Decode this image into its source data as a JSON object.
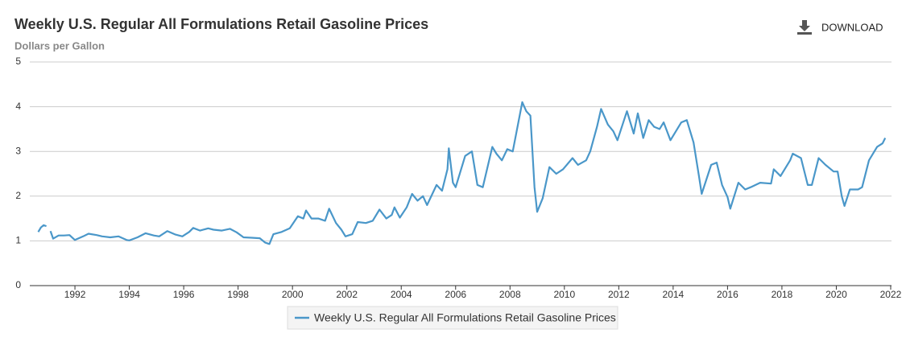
{
  "chart_data": {
    "type": "line",
    "title": "Weekly U.S. Regular All Formulations Retail Gasoline Prices",
    "subtitle": "Dollars per Gallon",
    "button": "DOWNLOAD",
    "xlim": [
      1990.34,
      2022.03
    ],
    "xticks": [
      1992,
      1994,
      1996,
      1998,
      2000,
      2002,
      2004,
      2006,
      2008,
      2010,
      2012,
      2014,
      2016,
      2018,
      2020,
      2022
    ],
    "ylim": [
      0,
      5
    ],
    "yticks": [
      0,
      1,
      2,
      3,
      4,
      5
    ],
    "grid": true,
    "legend": "bottom",
    "x": [
      1990.65,
      1990.75,
      1990.85,
      1990.95,
      1991.0,
      1991.1,
      1991.2,
      1991.4,
      1991.6,
      1991.8,
      1992.0,
      1992.3,
      1992.5,
      1992.8,
      1993.0,
      1993.3,
      1993.6,
      1993.9,
      1994.0,
      1994.3,
      1994.6,
      1994.9,
      1995.1,
      1995.4,
      1995.7,
      1995.95,
      1996.2,
      1996.35,
      1996.6,
      1996.9,
      1997.1,
      1997.4,
      1997.7,
      1997.95,
      1998.2,
      1998.5,
      1998.8,
      1999.0,
      1999.15,
      1999.3,
      1999.6,
      1999.9,
      2000.2,
      2000.4,
      2000.5,
      2000.7,
      2000.95,
      2001.2,
      2001.35,
      2001.6,
      2001.8,
      2001.95,
      2002.2,
      2002.4,
      2002.7,
      2002.95,
      2003.2,
      2003.45,
      2003.65,
      2003.75,
      2003.95,
      2004.2,
      2004.4,
      2004.6,
      2004.8,
      2004.95,
      2005.3,
      2005.5,
      2005.7,
      2005.75,
      2005.9,
      2006.0,
      2006.35,
      2006.6,
      2006.8,
      2007.0,
      2007.35,
      2007.5,
      2007.7,
      2007.9,
      2008.1,
      2008.45,
      2008.6,
      2008.75,
      2008.9,
      2009.0,
      2009.2,
      2009.45,
      2009.7,
      2009.95,
      2010.3,
      2010.5,
      2010.8,
      2010.95,
      2011.2,
      2011.35,
      2011.6,
      2011.8,
      2011.95,
      2012.3,
      2012.55,
      2012.7,
      2012.9,
      2013.1,
      2013.3,
      2013.5,
      2013.65,
      2013.9,
      2014.3,
      2014.5,
      2014.75,
      2014.95,
      2015.05,
      2015.4,
      2015.6,
      2015.8,
      2016.0,
      2016.1,
      2016.4,
      2016.65,
      2016.85,
      2017.2,
      2017.6,
      2017.7,
      2017.95,
      2018.3,
      2018.4,
      2018.7,
      2018.95,
      2019.1,
      2019.35,
      2019.6,
      2019.9,
      2020.05,
      2020.2,
      2020.3,
      2020.5,
      2020.8,
      2020.95,
      2021.2,
      2021.5,
      2021.7,
      2021.8
    ],
    "series": [
      {
        "name": "Weekly U.S. Regular All Formulations Retail Gasoline Prices",
        "color": "#4a97c9",
        "values": [
          1.2,
          1.3,
          1.35,
          1.33,
          null,
          1.22,
          1.05,
          1.12,
          1.12,
          1.13,
          1.02,
          1.1,
          1.16,
          1.13,
          1.1,
          1.08,
          1.1,
          1.02,
          1.01,
          1.08,
          1.17,
          1.12,
          1.1,
          1.22,
          1.14,
          1.1,
          1.2,
          1.29,
          1.23,
          1.28,
          1.25,
          1.23,
          1.27,
          1.19,
          1.08,
          1.07,
          1.06,
          0.96,
          0.93,
          1.15,
          1.2,
          1.28,
          1.55,
          1.5,
          1.68,
          1.5,
          1.5,
          1.45,
          1.72,
          1.4,
          1.25,
          1.1,
          1.15,
          1.42,
          1.4,
          1.45,
          1.7,
          1.5,
          1.58,
          1.75,
          1.52,
          1.75,
          2.05,
          1.9,
          2.0,
          1.8,
          2.25,
          2.12,
          2.6,
          3.07,
          2.3,
          2.2,
          2.9,
          3.0,
          2.25,
          2.2,
          3.1,
          2.95,
          2.8,
          3.05,
          3.0,
          4.1,
          3.9,
          3.8,
          2.2,
          1.65,
          1.95,
          2.65,
          2.5,
          2.6,
          2.85,
          2.7,
          2.8,
          3.0,
          3.55,
          3.95,
          3.6,
          3.45,
          3.25,
          3.9,
          3.4,
          3.85,
          3.3,
          3.7,
          3.55,
          3.5,
          3.65,
          3.25,
          3.65,
          3.7,
          3.2,
          2.45,
          2.05,
          2.7,
          2.75,
          2.25,
          1.98,
          1.72,
          2.3,
          2.15,
          2.2,
          2.3,
          2.28,
          2.6,
          2.45,
          2.8,
          2.95,
          2.85,
          2.25,
          2.25,
          2.85,
          2.7,
          2.55,
          2.55,
          2.0,
          1.78,
          2.15,
          2.15,
          2.2,
          2.8,
          3.1,
          3.18,
          3.3
        ]
      }
    ]
  }
}
